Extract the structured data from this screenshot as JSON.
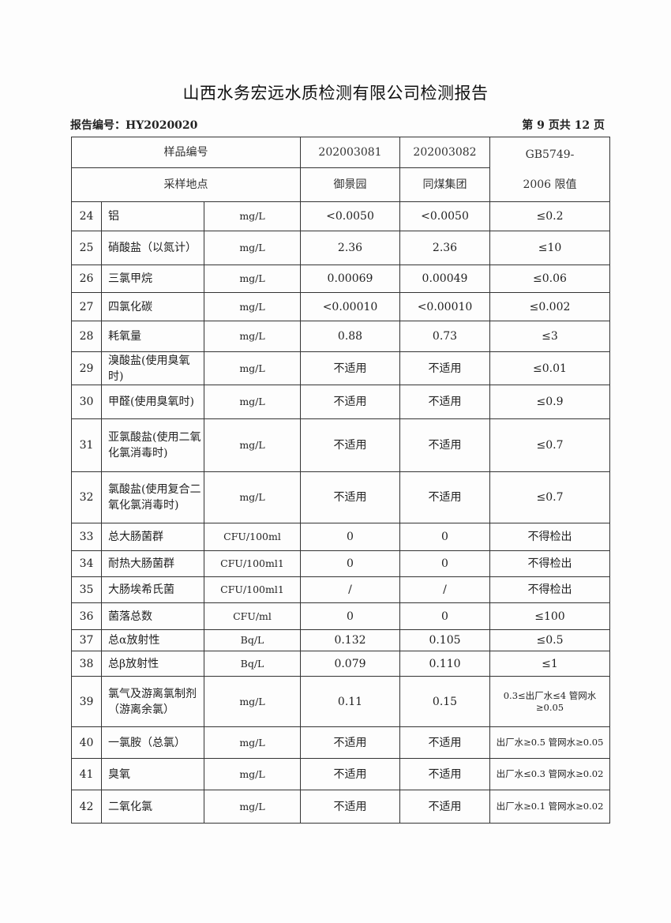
{
  "title": "山西水务宏远水质检测有限公司检测报告",
  "report_number": "报告编号：HY2020020",
  "page_info": "第 9 页共 12 页",
  "header": {
    "sample_no_label": "样品编号",
    "sample_site_label": "采样地点",
    "samples": [
      {
        "id": "202003081",
        "site": "御景园"
      },
      {
        "id": "202003082",
        "site": "同煤集团"
      }
    ],
    "standard_label_1": "GB5749-",
    "standard_label_2": "2006 限值"
  },
  "rows": [
    {
      "no": "24",
      "item": "铝",
      "unit": "mg/L",
      "v1": "<0.0050",
      "v2": "<0.0050",
      "limit": "≤0.2"
    },
    {
      "no": "25",
      "item": "硝酸盐（以氮计）",
      "unit": "mg/L",
      "v1": "2.36",
      "v2": "2.36",
      "limit": "≤10"
    },
    {
      "no": "26",
      "item": "三氯甲烷",
      "unit": "mg/L",
      "v1": "0.00069",
      "v2": "0.00049",
      "limit": "≤0.06"
    },
    {
      "no": "27",
      "item": "四氯化碳",
      "unit": "mg/L",
      "v1": "<0.00010",
      "v2": "<0.00010",
      "limit": "≤0.002"
    },
    {
      "no": "28",
      "item": "耗氧量",
      "unit": "mg/L",
      "v1": "0.88",
      "v2": "0.73",
      "limit": "≤3"
    },
    {
      "no": "29",
      "item": "溴酸盐(使用臭氧时)",
      "unit": "mg/L",
      "v1": "不适用",
      "v2": "不适用",
      "limit": "≤0.01"
    },
    {
      "no": "30",
      "item": "甲醛(使用臭氧时)",
      "unit": "mg/L",
      "v1": "不适用",
      "v2": "不适用",
      "limit": "≤0.9"
    },
    {
      "no": "31",
      "item": "亚氯酸盐(使用二氧化氯消毒时)",
      "unit": "mg/L",
      "v1": "不适用",
      "v2": "不适用",
      "limit": "≤0.7"
    },
    {
      "no": "32",
      "item": "氯酸盐(使用复合二氧化氯消毒时)",
      "unit": "mg/L",
      "v1": "不适用",
      "v2": "不适用",
      "limit": "≤0.7"
    },
    {
      "no": "33",
      "item": "总大肠菌群",
      "unit": "CFU/100ml",
      "v1": "0",
      "v2": "0",
      "limit": "不得检出"
    },
    {
      "no": "34",
      "item": "耐热大肠菌群",
      "unit": "CFU/100ml1",
      "v1": "0",
      "v2": "0",
      "limit": "不得检出"
    },
    {
      "no": "35",
      "item": "大肠埃希氏菌",
      "unit": "CFU/100ml1",
      "v1": "/",
      "v2": "/",
      "limit": "不得检出"
    },
    {
      "no": "36",
      "item": "菌落总数",
      "unit": "CFU/ml",
      "v1": "0",
      "v2": "0",
      "limit": "≤100"
    },
    {
      "no": "37",
      "item": "总α放射性",
      "unit": "Bq/L",
      "v1": "0.132",
      "v2": "0.105",
      "limit": "≤0.5"
    },
    {
      "no": "38",
      "item": "总β放射性",
      "unit": "Bq/L",
      "v1": "0.079",
      "v2": "0.110",
      "limit": "≤1"
    },
    {
      "no": "39",
      "item": "氯气及游离氯制剂（游离余氯）",
      "unit": "mg/L",
      "v1": "0.11",
      "v2": "0.15",
      "limit": "0.3≤出厂水≤4 管网水≥0.05"
    },
    {
      "no": "40",
      "item": "一氯胺（总氯）",
      "unit": "mg/L",
      "v1": "不适用",
      "v2": "不适用",
      "limit": "出厂水≥0.5 管网水≥0.05"
    },
    {
      "no": "41",
      "item": "臭氧",
      "unit": "mg/L",
      "v1": "不适用",
      "v2": "不适用",
      "limit": "出厂水≤0.3 管网水≥0.02"
    },
    {
      "no": "42",
      "item": "二氧化氯",
      "unit": "mg/L",
      "v1": "不适用",
      "v2": "不适用",
      "limit": "出厂水≥0.1 管网水≥0.02"
    }
  ]
}
